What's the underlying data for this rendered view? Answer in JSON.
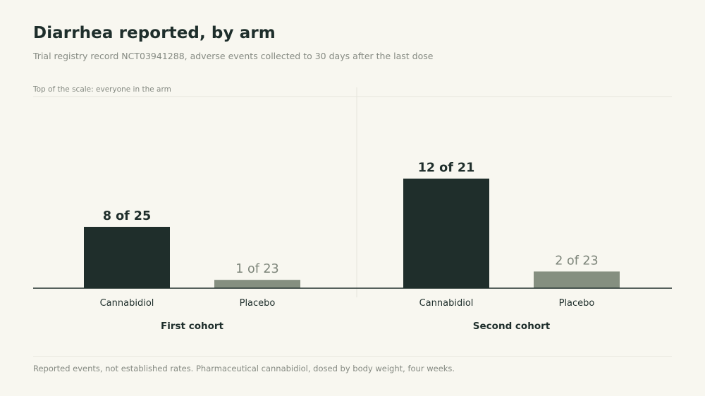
{
  "header": {
    "title": "Diarrhea reported, by arm",
    "subtitle": "Trial registry record NCT03941288, adverse events collected to 30 days after the last dose"
  },
  "footer": {
    "note": "Reported events, not established rates. Pharmaceutical cannabidiol, dosed by body weight, four weeks."
  },
  "colors": {
    "cannabidiol": "#1f2e2b",
    "placebo": "#858f80",
    "axis": "#1f2e2b",
    "placebo_label": "#7d857a",
    "guide": "#e6e5dc"
  },
  "chart_data": {
    "type": "bar",
    "scale_note": "Top of the scale: everyone in the arm",
    "ylim": [
      0,
      1
    ],
    "groups": [
      {
        "name": "First cohort",
        "bars": [
          {
            "arm": "Cannabidiol",
            "events": 8,
            "total": 25,
            "label": "8 of 25"
          },
          {
            "arm": "Placebo",
            "events": 1,
            "total": 23,
            "label": "1 of 23"
          }
        ]
      },
      {
        "name": "Second cohort",
        "bars": [
          {
            "arm": "Cannabidiol",
            "events": 12,
            "total": 21,
            "label": "12 of 21"
          },
          {
            "arm": "Placebo",
            "events": 2,
            "total": 23,
            "label": "2 of 23"
          }
        ]
      }
    ]
  }
}
